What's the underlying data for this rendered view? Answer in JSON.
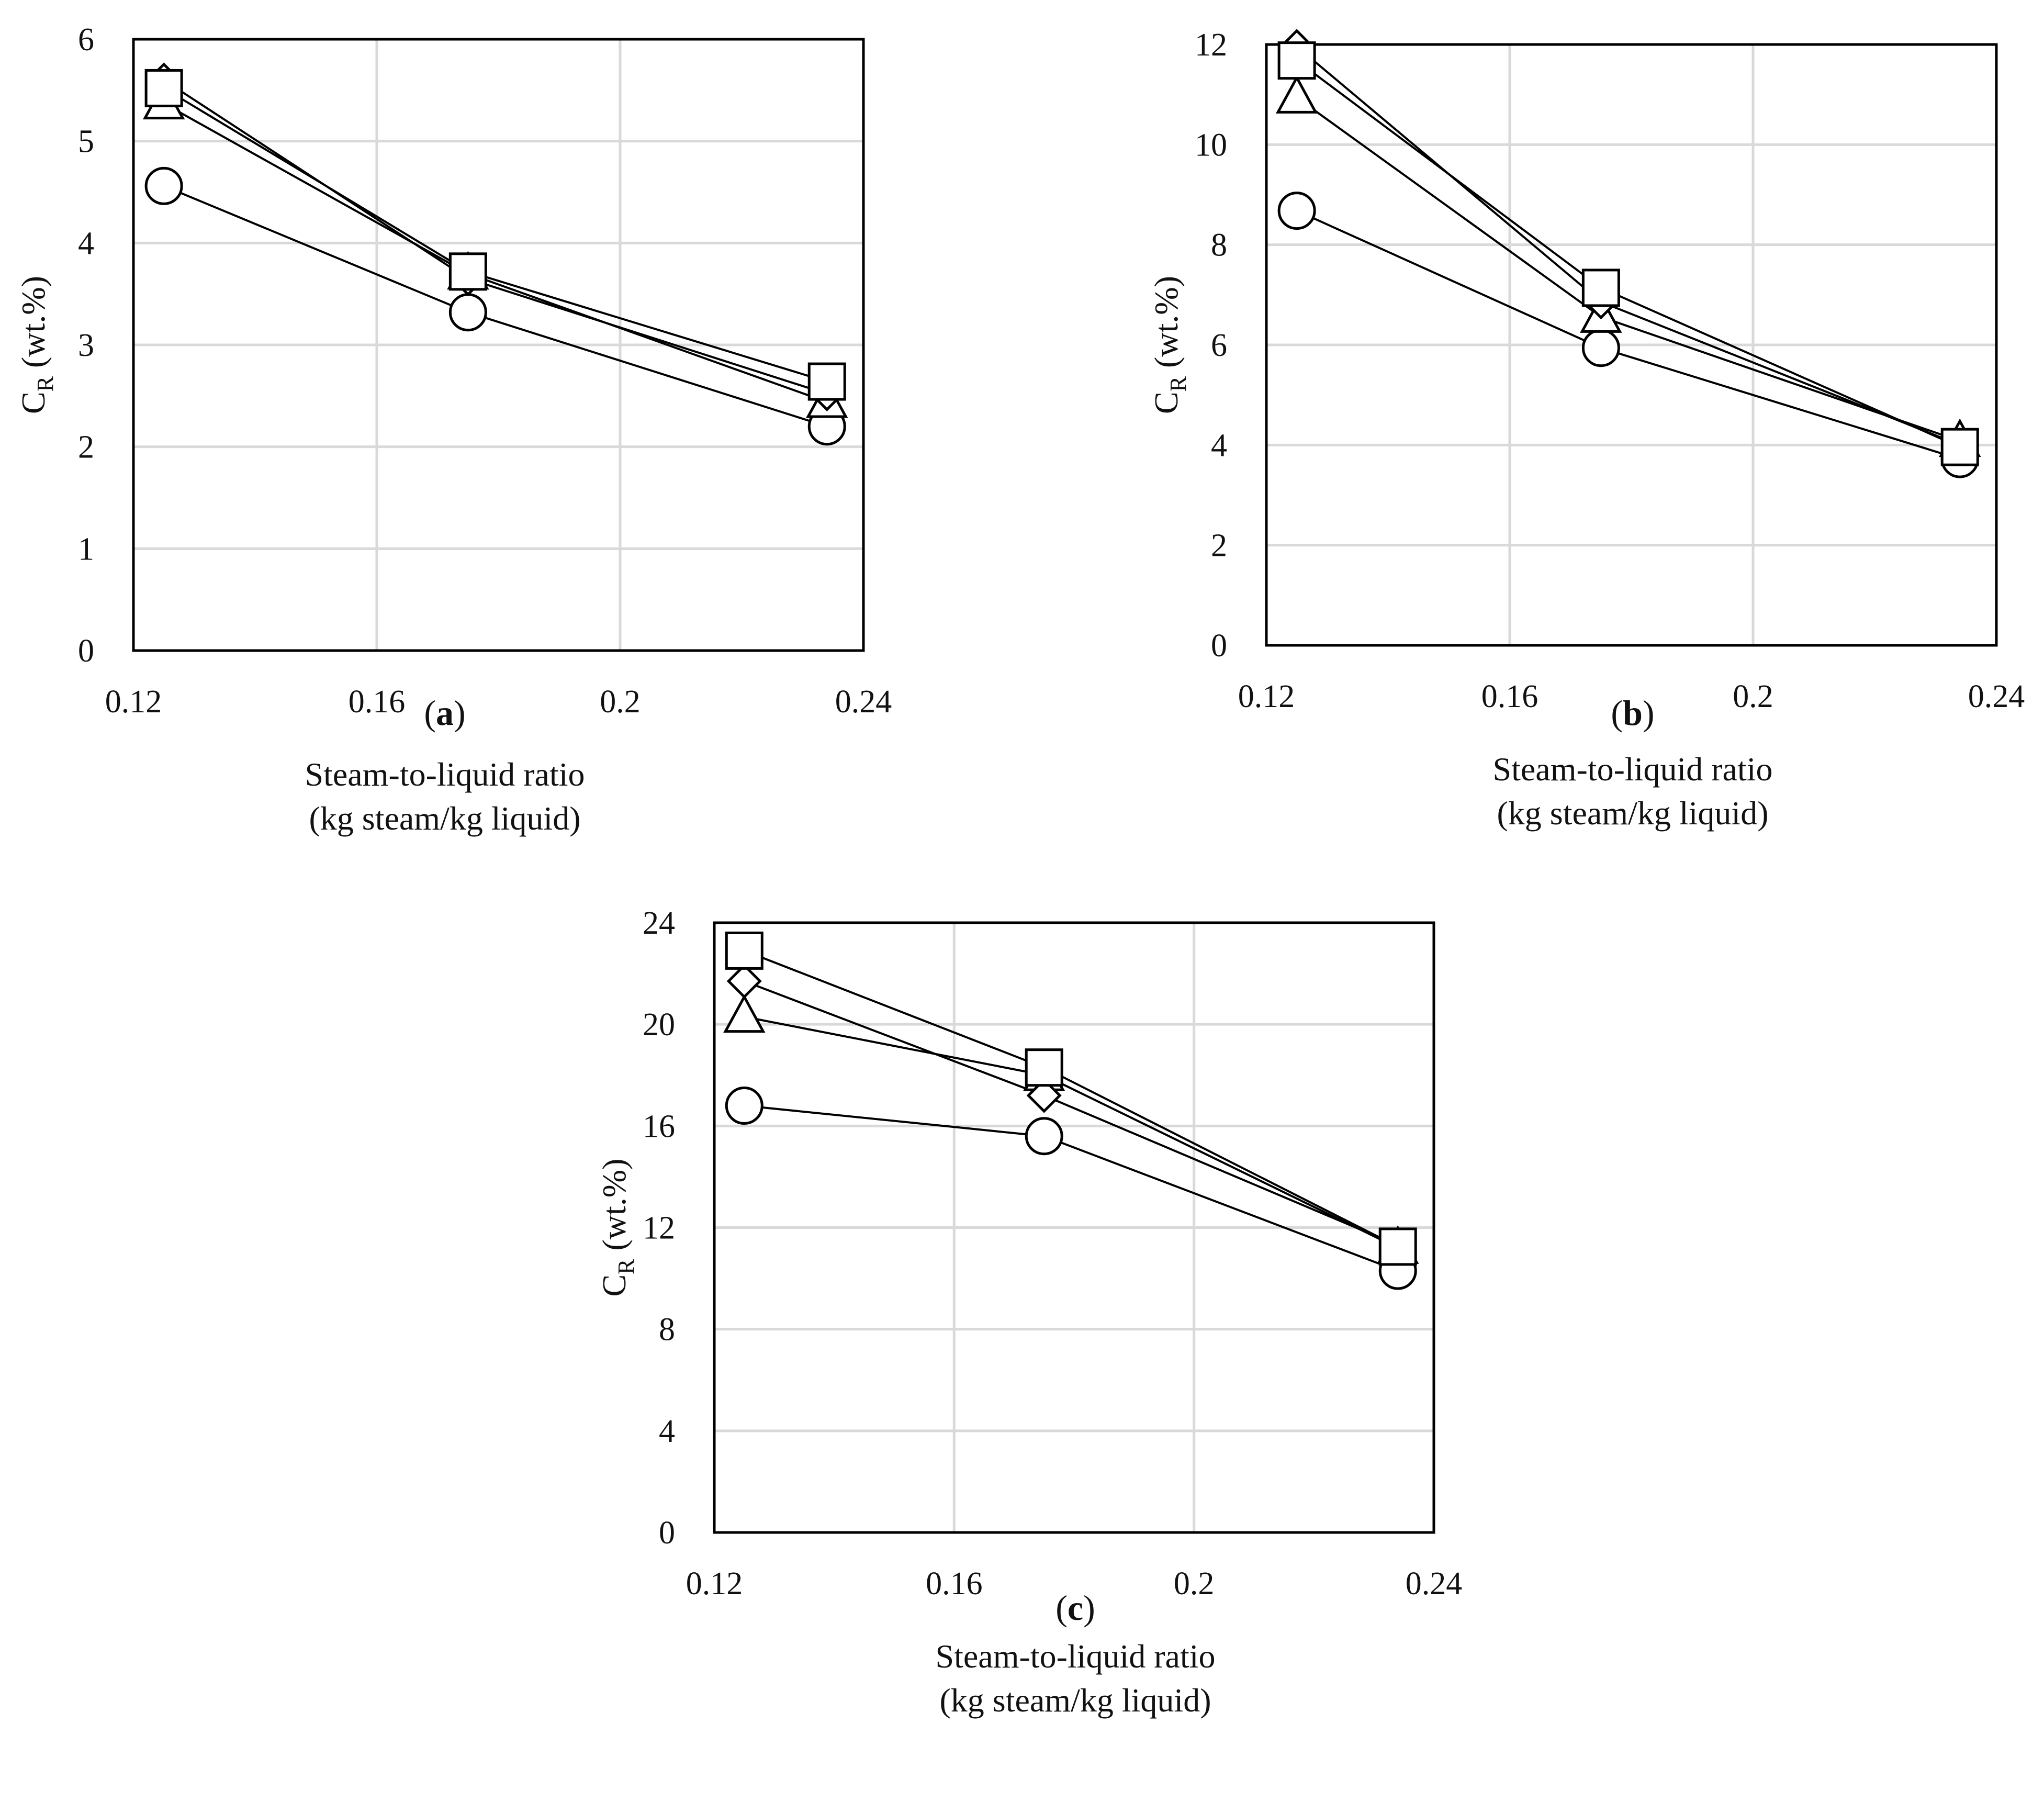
{
  "chart_data": [
    {
      "type": "line",
      "panel_label": "a",
      "xlabel_line1": "Steam-to-liquid ratio",
      "xlabel_line2": "(kg steam/kg liquid)",
      "ylabel_main": "C",
      "ylabel_sub": "R",
      "ylabel_rest": " (wt.%)",
      "xlim": [
        0.12,
        0.24
      ],
      "ylim": [
        0,
        6
      ],
      "x_ticks": [
        "0.12",
        "0.16",
        "0.2",
        "0.24"
      ],
      "y_ticks": [
        "0",
        "1",
        "2",
        "3",
        "4",
        "5",
        "6"
      ],
      "x": [
        0.125,
        0.175,
        0.234
      ],
      "series": [
        {
          "marker": "circle",
          "values": [
            4.56,
            3.32,
            2.2
          ]
        },
        {
          "marker": "triangle",
          "values": [
            5.37,
            3.7,
            2.44
          ]
        },
        {
          "marker": "diamond",
          "values": [
            5.6,
            3.65,
            2.52
          ]
        },
        {
          "marker": "square",
          "values": [
            5.52,
            3.72,
            2.64
          ]
        }
      ]
    },
    {
      "type": "line",
      "panel_label": "b",
      "xlabel_line1": "Steam-to-liquid ratio",
      "xlabel_line2": "(kg steam/kg liquid)",
      "ylabel_main": "C",
      "ylabel_sub": "R",
      "ylabel_rest": " (wt.%)",
      "xlim": [
        0.12,
        0.24
      ],
      "ylim": [
        0,
        12
      ],
      "x_ticks": [
        "0.12",
        "0.16",
        "0.2",
        "0.24"
      ],
      "y_ticks": [
        "0",
        "2",
        "4",
        "6",
        "8",
        "10",
        "12"
      ],
      "x": [
        0.125,
        0.175,
        0.234
      ],
      "series": [
        {
          "marker": "circle",
          "values": [
            8.68,
            5.94,
            3.72
          ]
        },
        {
          "marker": "triangle",
          "values": [
            10.94,
            6.56,
            4.08
          ]
        },
        {
          "marker": "diamond",
          "values": [
            11.96,
            6.86,
            4.0
          ]
        },
        {
          "marker": "square",
          "values": [
            11.68,
            7.14,
            3.96
          ]
        }
      ]
    },
    {
      "type": "line",
      "panel_label": "c",
      "xlabel_line1": "Steam-to-liquid ratio",
      "xlabel_line2": "(kg steam/kg liquid)",
      "ylabel_main": "C",
      "ylabel_sub": "R",
      "ylabel_rest": " (wt.%)",
      "xlim": [
        0.12,
        0.24
      ],
      "ylim": [
        0,
        24
      ],
      "x_ticks": [
        "0.12",
        "0.16",
        "0.2",
        "0.24"
      ],
      "y_ticks": [
        "0",
        "4",
        "8",
        "12",
        "16",
        "20",
        "24"
      ],
      "x": [
        0.125,
        0.175,
        0.234
      ],
      "series": [
        {
          "marker": "circle",
          "values": [
            16.8,
            15.6,
            10.3
          ]
        },
        {
          "marker": "triangle",
          "values": [
            20.3,
            18.0,
            11.2
          ]
        },
        {
          "marker": "diamond",
          "values": [
            21.7,
            17.2,
            11.3
          ]
        },
        {
          "marker": "square",
          "values": [
            22.9,
            18.3,
            11.25
          ]
        }
      ]
    }
  ]
}
